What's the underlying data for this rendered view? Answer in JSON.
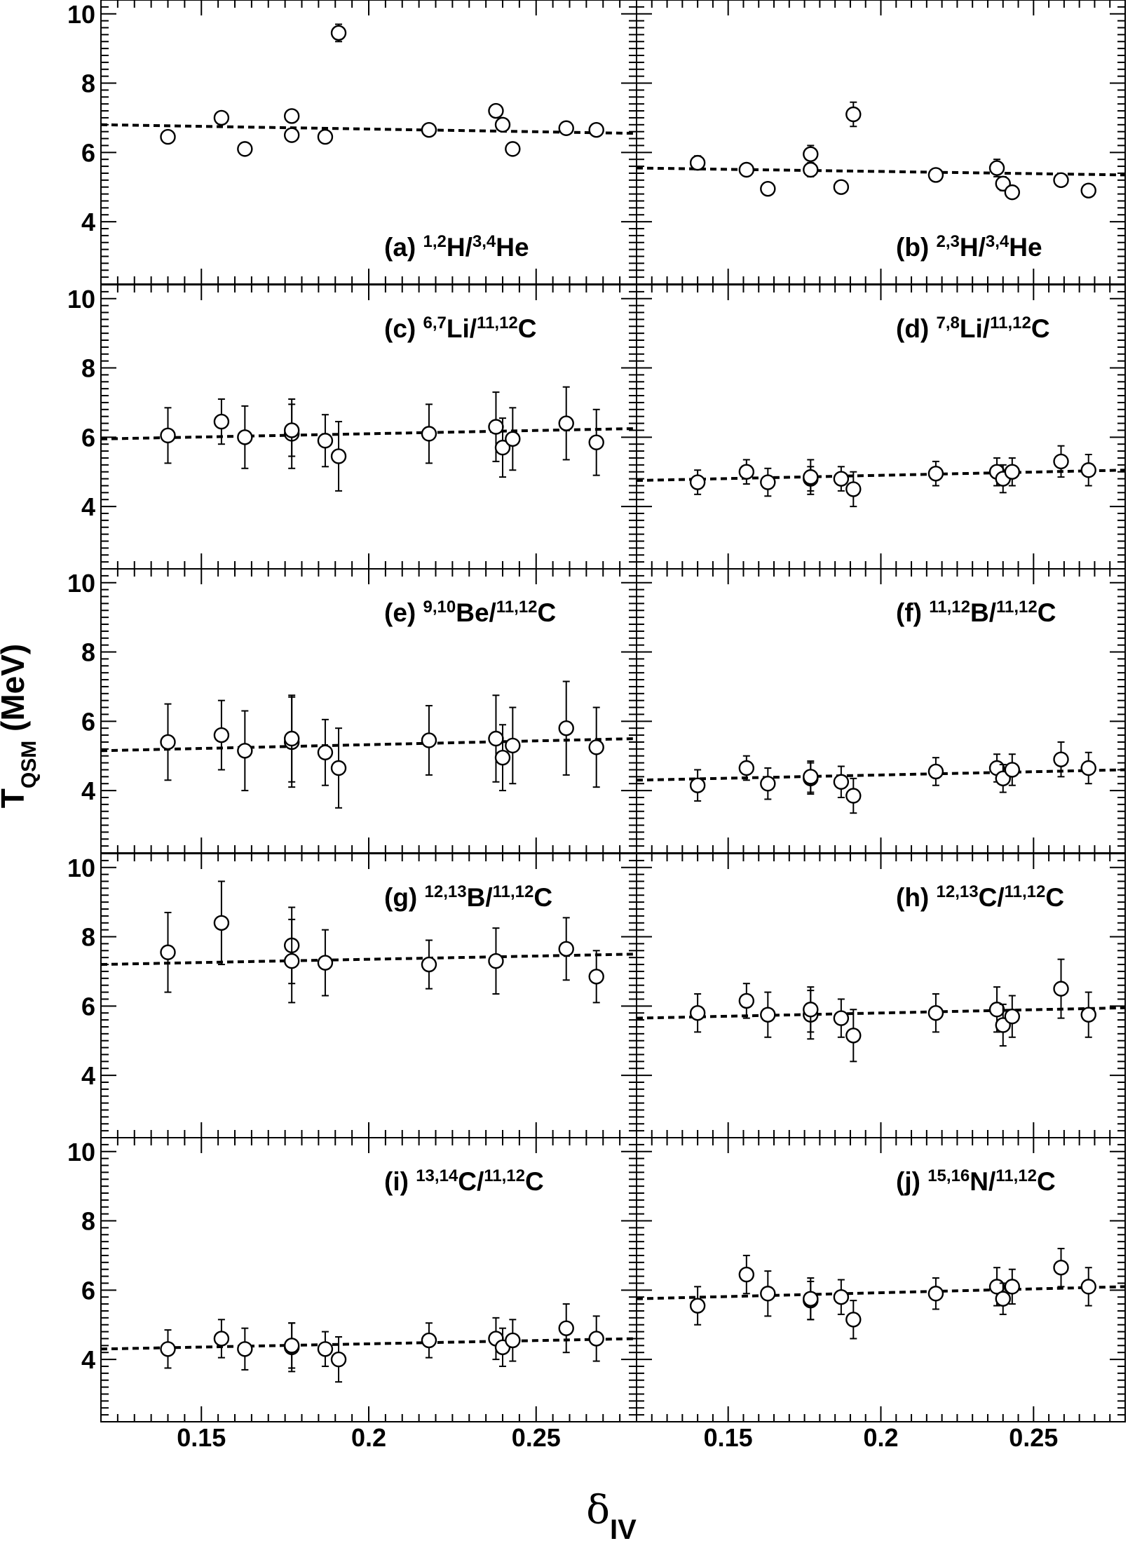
{
  "figure": {
    "ylabel_main": "T",
    "ylabel_sub": "QSM",
    "ylabel_unit": " (MeV)",
    "xlabel_main": "δ",
    "xlabel_sub": "IV"
  },
  "chart_data": {
    "type": "scatter",
    "xlim": [
      0.12,
      0.28
    ],
    "ylim": [
      2.2,
      10.4
    ],
    "x_ticks": [
      0.15,
      0.2,
      0.25
    ],
    "x_tick_labels": [
      "0.15",
      "0.2",
      "0.25"
    ],
    "y_ticks": [
      4,
      6,
      8,
      10
    ],
    "y_tick_labels": [
      "4",
      "6",
      "8",
      "10"
    ],
    "grid": false,
    "marker": "open circle with vertical error bars",
    "fit_line": "dashed linear fit",
    "x": [
      0.14,
      0.156,
      0.163,
      0.177,
      0.177,
      0.187,
      0.191,
      0.218,
      0.238,
      0.24,
      0.243,
      0.259,
      0.268
    ],
    "panels": [
      {
        "tag": "(a)",
        "label": [
          {
            "t": "1,2",
            "sup": true
          },
          {
            "t": "H/"
          },
          {
            "t": "3,4",
            "sup": true
          },
          {
            "t": "He"
          }
        ],
        "points": [
          {
            "x": 0.14,
            "y": 6.45,
            "err": 0.15
          },
          {
            "x": 0.156,
            "y": 7.0,
            "err": 0.15
          },
          {
            "x": 0.163,
            "y": 6.1,
            "err": 0.15
          },
          {
            "x": 0.177,
            "y": 6.5,
            "err": 0.15
          },
          {
            "x": 0.177,
            "y": 7.05,
            "err": 0.15
          },
          {
            "x": 0.187,
            "y": 6.45,
            "err": 0.15
          },
          {
            "x": 0.191,
            "y": 9.45,
            "err": 0.25
          },
          {
            "x": 0.218,
            "y": 6.65,
            "err": 0.15
          },
          {
            "x": 0.238,
            "y": 7.2,
            "err": 0.15
          },
          {
            "x": 0.24,
            "y": 6.8,
            "err": 0.15
          },
          {
            "x": 0.243,
            "y": 6.1,
            "err": 0.15
          },
          {
            "x": 0.259,
            "y": 6.7,
            "err": 0.15
          },
          {
            "x": 0.268,
            "y": 6.65,
            "err": 0.15
          }
        ],
        "fit": [
          [
            0.12,
            6.8
          ],
          [
            0.28,
            6.55
          ]
        ]
      },
      {
        "tag": "(b)",
        "label": [
          {
            "t": "2,3",
            "sup": true
          },
          {
            "t": "H/"
          },
          {
            "t": "3,4",
            "sup": true
          },
          {
            "t": "He"
          }
        ],
        "points": [
          {
            "x": 0.14,
            "y": 5.7,
            "err": 0.2
          },
          {
            "x": 0.156,
            "y": 5.5,
            "err": 0.15
          },
          {
            "x": 0.163,
            "y": 4.95,
            "err": 0.1
          },
          {
            "x": 0.177,
            "y": 5.5,
            "err": 0.2
          },
          {
            "x": 0.177,
            "y": 5.95,
            "err": 0.25
          },
          {
            "x": 0.187,
            "y": 5.0,
            "err": 0.1
          },
          {
            "x": 0.191,
            "y": 7.1,
            "err": 0.35
          },
          {
            "x": 0.218,
            "y": 5.35,
            "err": 0.15
          },
          {
            "x": 0.238,
            "y": 5.55,
            "err": 0.25
          },
          {
            "x": 0.24,
            "y": 5.1,
            "err": 0.2
          },
          {
            "x": 0.243,
            "y": 4.85,
            "err": 0.1
          },
          {
            "x": 0.259,
            "y": 5.2,
            "err": 0.15
          },
          {
            "x": 0.268,
            "y": 4.9,
            "err": 0.1
          }
        ],
        "fit": [
          [
            0.12,
            5.55
          ],
          [
            0.28,
            5.35
          ]
        ]
      },
      {
        "tag": "(c)",
        "label": [
          {
            "t": "6,7",
            "sup": true
          },
          {
            "t": "Li/"
          },
          {
            "t": "11,12",
            "sup": true
          },
          {
            "t": "C"
          }
        ],
        "points": [
          {
            "x": 0.14,
            "y": 6.05,
            "err": 0.8
          },
          {
            "x": 0.156,
            "y": 6.45,
            "err": 0.65
          },
          {
            "x": 0.163,
            "y": 6.0,
            "err": 0.9
          },
          {
            "x": 0.177,
            "y": 6.1,
            "err": 1.0
          },
          {
            "x": 0.177,
            "y": 6.2,
            "err": 0.75
          },
          {
            "x": 0.187,
            "y": 5.9,
            "err": 0.75
          },
          {
            "x": 0.191,
            "y": 5.45,
            "err": 1.0
          },
          {
            "x": 0.218,
            "y": 6.1,
            "err": 0.85
          },
          {
            "x": 0.238,
            "y": 6.3,
            "err": 1.0
          },
          {
            "x": 0.24,
            "y": 5.7,
            "err": 0.85
          },
          {
            "x": 0.243,
            "y": 5.95,
            "err": 0.9
          },
          {
            "x": 0.259,
            "y": 6.4,
            "err": 1.05
          },
          {
            "x": 0.268,
            "y": 5.85,
            "err": 0.95
          }
        ],
        "fit": [
          [
            0.12,
            5.95
          ],
          [
            0.28,
            6.25
          ]
        ]
      },
      {
        "tag": "(d)",
        "label": [
          {
            "t": "7,8",
            "sup": true
          },
          {
            "t": "Li/"
          },
          {
            "t": "11,12",
            "sup": true
          },
          {
            "t": "C"
          }
        ],
        "points": [
          {
            "x": 0.14,
            "y": 4.7,
            "err": 0.35
          },
          {
            "x": 0.156,
            "y": 5.0,
            "err": 0.35
          },
          {
            "x": 0.163,
            "y": 4.7,
            "err": 0.4
          },
          {
            "x": 0.177,
            "y": 4.8,
            "err": 0.35
          },
          {
            "x": 0.177,
            "y": 4.85,
            "err": 0.5
          },
          {
            "x": 0.187,
            "y": 4.8,
            "err": 0.35
          },
          {
            "x": 0.191,
            "y": 4.5,
            "err": 0.5
          },
          {
            "x": 0.218,
            "y": 4.95,
            "err": 0.35
          },
          {
            "x": 0.238,
            "y": 5.0,
            "err": 0.4
          },
          {
            "x": 0.24,
            "y": 4.8,
            "err": 0.4
          },
          {
            "x": 0.243,
            "y": 5.0,
            "err": 0.4
          },
          {
            "x": 0.259,
            "y": 5.3,
            "err": 0.45
          },
          {
            "x": 0.268,
            "y": 5.05,
            "err": 0.45
          }
        ],
        "fit": [
          [
            0.12,
            4.75
          ],
          [
            0.28,
            5.05
          ]
        ]
      },
      {
        "tag": "(e)",
        "label": [
          {
            "t": "9,10",
            "sup": true
          },
          {
            "t": "Be/"
          },
          {
            "t": "11,12",
            "sup": true
          },
          {
            "t": "C"
          }
        ],
        "points": [
          {
            "x": 0.14,
            "y": 5.4,
            "err": 1.1
          },
          {
            "x": 0.156,
            "y": 5.6,
            "err": 1.0
          },
          {
            "x": 0.163,
            "y": 5.15,
            "err": 1.15
          },
          {
            "x": 0.177,
            "y": 5.4,
            "err": 1.3
          },
          {
            "x": 0.177,
            "y": 5.5,
            "err": 1.25
          },
          {
            "x": 0.187,
            "y": 5.1,
            "err": 0.95
          },
          {
            "x": 0.191,
            "y": 4.65,
            "err": 1.15
          },
          {
            "x": 0.218,
            "y": 5.45,
            "err": 1.0
          },
          {
            "x": 0.238,
            "y": 5.5,
            "err": 1.25
          },
          {
            "x": 0.24,
            "y": 4.95,
            "err": 0.95
          },
          {
            "x": 0.243,
            "y": 5.3,
            "err": 1.1
          },
          {
            "x": 0.259,
            "y": 5.8,
            "err": 1.35
          },
          {
            "x": 0.268,
            "y": 5.25,
            "err": 1.15
          }
        ],
        "fit": [
          [
            0.12,
            5.15
          ],
          [
            0.28,
            5.5
          ]
        ]
      },
      {
        "tag": "(f)",
        "label": [
          {
            "t": "11,12",
            "sup": true
          },
          {
            "t": "B/"
          },
          {
            "t": "11,12",
            "sup": true
          },
          {
            "t": "C"
          }
        ],
        "points": [
          {
            "x": 0.14,
            "y": 4.15,
            "err": 0.45
          },
          {
            "x": 0.156,
            "y": 4.65,
            "err": 0.35
          },
          {
            "x": 0.163,
            "y": 4.2,
            "err": 0.45
          },
          {
            "x": 0.177,
            "y": 4.35,
            "err": 0.45
          },
          {
            "x": 0.177,
            "y": 4.4,
            "err": 0.45
          },
          {
            "x": 0.187,
            "y": 4.25,
            "err": 0.45
          },
          {
            "x": 0.191,
            "y": 3.85,
            "err": 0.5
          },
          {
            "x": 0.218,
            "y": 4.55,
            "err": 0.4
          },
          {
            "x": 0.238,
            "y": 4.65,
            "err": 0.4
          },
          {
            "x": 0.24,
            "y": 4.35,
            "err": 0.4
          },
          {
            "x": 0.243,
            "y": 4.6,
            "err": 0.45
          },
          {
            "x": 0.259,
            "y": 4.9,
            "err": 0.5
          },
          {
            "x": 0.268,
            "y": 4.65,
            "err": 0.45
          }
        ],
        "fit": [
          [
            0.12,
            4.3
          ],
          [
            0.28,
            4.6
          ]
        ]
      },
      {
        "tag": "(g)",
        "label": [
          {
            "t": "12,13",
            "sup": true
          },
          {
            "t": "B/"
          },
          {
            "t": "11,12",
            "sup": true
          },
          {
            "t": "C"
          }
        ],
        "points": [
          {
            "x": 0.14,
            "y": 7.55,
            "err": 1.15
          },
          {
            "x": 0.156,
            "y": 8.4,
            "err": 1.2
          },
          {
            "x": 0.177,
            "y": 7.75,
            "err": 1.1
          },
          {
            "x": 0.177,
            "y": 7.3,
            "err": 1.2
          },
          {
            "x": 0.187,
            "y": 7.25,
            "err": 0.95
          },
          {
            "x": 0.218,
            "y": 7.2,
            "err": 0.7
          },
          {
            "x": 0.238,
            "y": 7.3,
            "err": 0.95
          },
          {
            "x": 0.259,
            "y": 7.65,
            "err": 0.9
          },
          {
            "x": 0.268,
            "y": 6.85,
            "err": 0.75
          }
        ],
        "fit": [
          [
            0.12,
            7.2
          ],
          [
            0.28,
            7.5
          ]
        ]
      },
      {
        "tag": "(h)",
        "label": [
          {
            "t": "12,13",
            "sup": true
          },
          {
            "t": "C/"
          },
          {
            "t": "11,12",
            "sup": true
          },
          {
            "t": "C"
          }
        ],
        "points": [
          {
            "x": 0.14,
            "y": 5.8,
            "err": 0.55
          },
          {
            "x": 0.156,
            "y": 6.15,
            "err": 0.5
          },
          {
            "x": 0.163,
            "y": 5.75,
            "err": 0.65
          },
          {
            "x": 0.177,
            "y": 5.75,
            "err": 0.7
          },
          {
            "x": 0.177,
            "y": 5.9,
            "err": 0.65
          },
          {
            "x": 0.187,
            "y": 5.65,
            "err": 0.55
          },
          {
            "x": 0.191,
            "y": 5.15,
            "err": 0.75
          },
          {
            "x": 0.218,
            "y": 5.8,
            "err": 0.55
          },
          {
            "x": 0.238,
            "y": 5.9,
            "err": 0.65
          },
          {
            "x": 0.24,
            "y": 5.45,
            "err": 0.6
          },
          {
            "x": 0.243,
            "y": 5.7,
            "err": 0.6
          },
          {
            "x": 0.259,
            "y": 6.5,
            "err": 0.85
          },
          {
            "x": 0.268,
            "y": 5.75,
            "err": 0.65
          }
        ],
        "fit": [
          [
            0.12,
            5.65
          ],
          [
            0.28,
            5.95
          ]
        ]
      },
      {
        "tag": "(i)",
        "label": [
          {
            "t": "13,14",
            "sup": true
          },
          {
            "t": "C/"
          },
          {
            "t": "11,12",
            "sup": true
          },
          {
            "t": "C"
          }
        ],
        "points": [
          {
            "x": 0.14,
            "y": 4.3,
            "err": 0.55
          },
          {
            "x": 0.156,
            "y": 4.6,
            "err": 0.55
          },
          {
            "x": 0.163,
            "y": 4.3,
            "err": 0.6
          },
          {
            "x": 0.177,
            "y": 4.35,
            "err": 0.7
          },
          {
            "x": 0.177,
            "y": 4.4,
            "err": 0.65
          },
          {
            "x": 0.187,
            "y": 4.3,
            "err": 0.5
          },
          {
            "x": 0.191,
            "y": 4.0,
            "err": 0.65
          },
          {
            "x": 0.218,
            "y": 4.55,
            "err": 0.5
          },
          {
            "x": 0.238,
            "y": 4.6,
            "err": 0.6
          },
          {
            "x": 0.24,
            "y": 4.35,
            "err": 0.55
          },
          {
            "x": 0.243,
            "y": 4.55,
            "err": 0.6
          },
          {
            "x": 0.259,
            "y": 4.9,
            "err": 0.7
          },
          {
            "x": 0.268,
            "y": 4.6,
            "err": 0.65
          }
        ],
        "fit": [
          [
            0.12,
            4.3
          ],
          [
            0.28,
            4.6
          ]
        ]
      },
      {
        "tag": "(j)",
        "label": [
          {
            "t": "15,16",
            "sup": true
          },
          {
            "t": "N/"
          },
          {
            "t": "11,12",
            "sup": true
          },
          {
            "t": "C"
          }
        ],
        "points": [
          {
            "x": 0.14,
            "y": 5.55,
            "err": 0.55
          },
          {
            "x": 0.156,
            "y": 6.45,
            "err": 0.55
          },
          {
            "x": 0.163,
            "y": 5.9,
            "err": 0.65
          },
          {
            "x": 0.177,
            "y": 5.7,
            "err": 0.55
          },
          {
            "x": 0.177,
            "y": 5.75,
            "err": 0.6
          },
          {
            "x": 0.187,
            "y": 5.8,
            "err": 0.5
          },
          {
            "x": 0.191,
            "y": 5.15,
            "err": 0.55
          },
          {
            "x": 0.218,
            "y": 5.9,
            "err": 0.45
          },
          {
            "x": 0.238,
            "y": 6.1,
            "err": 0.55
          },
          {
            "x": 0.24,
            "y": 5.75,
            "err": 0.45
          },
          {
            "x": 0.243,
            "y": 6.1,
            "err": 0.5
          },
          {
            "x": 0.259,
            "y": 6.65,
            "err": 0.55
          },
          {
            "x": 0.268,
            "y": 6.1,
            "err": 0.55
          }
        ],
        "fit": [
          [
            0.12,
            5.75
          ],
          [
            0.28,
            6.1
          ]
        ]
      }
    ]
  }
}
